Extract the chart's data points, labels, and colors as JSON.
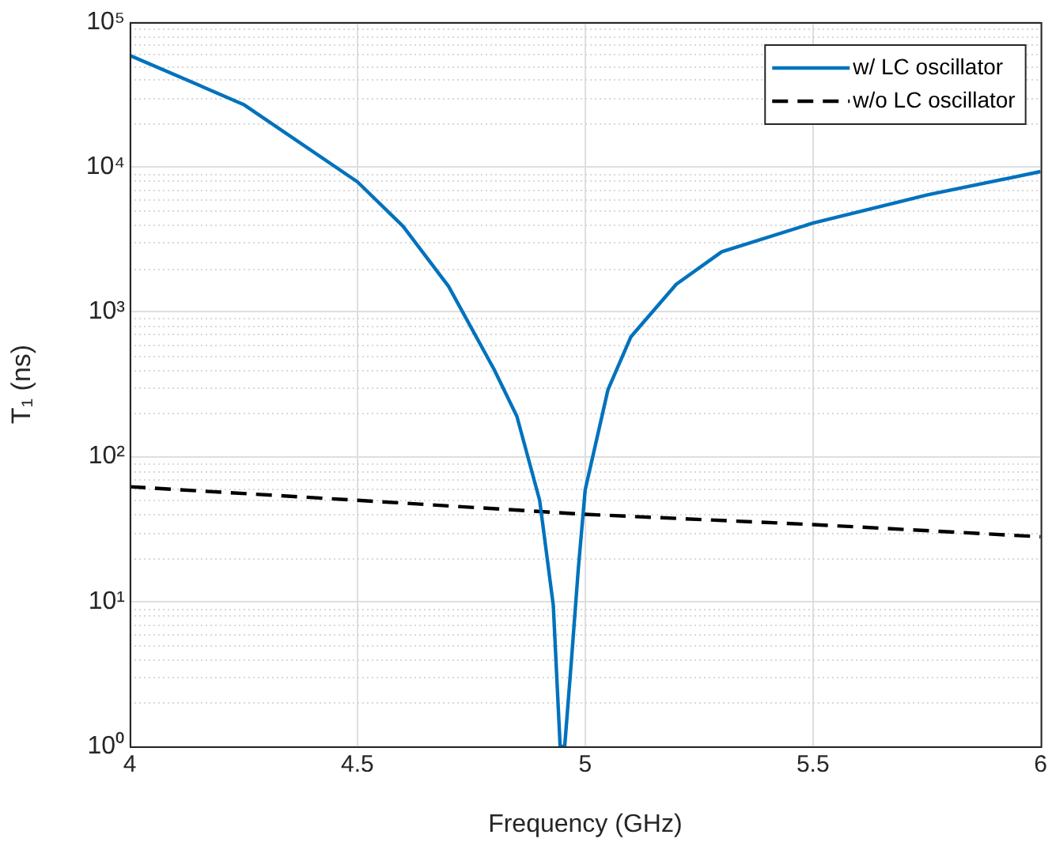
{
  "chart_data": {
    "type": "line",
    "xlabel": "Frequency (GHz)",
    "ylabel": "T₁ (ns)",
    "log": "y",
    "grid": true,
    "legend": "top right",
    "marker": "none",
    "xlim": [
      4,
      6
    ],
    "xticks": [
      4,
      4.5,
      5,
      5.5,
      6
    ],
    "ylim": [
      1,
      100000
    ],
    "yticks": [
      {
        "value": 1,
        "label": "10⁰"
      },
      {
        "value": 10,
        "label": "10¹"
      },
      {
        "value": 100,
        "label": "10²"
      },
      {
        "value": 1000,
        "label": "10³"
      },
      {
        "value": 10000,
        "label": "10⁴"
      },
      {
        "value": 100000,
        "label": "10⁵"
      }
    ],
    "series": [
      {
        "name": "w/ LC oscillator",
        "color": "#0072bd",
        "line_style": "solid",
        "x": [
          4,
          4.25,
          4.5,
          4.6,
          4.7,
          4.8,
          4.85,
          4.9,
          4.93,
          4.945,
          4.955,
          4.97,
          4.985,
          5,
          5.05,
          5.1,
          5.2,
          5.3,
          5.5,
          5.75,
          6
        ],
        "values": [
          59000,
          27000,
          7900,
          3900,
          1500,
          400,
          190,
          50,
          9.4,
          1,
          1,
          4,
          17,
          59,
          290,
          670,
          1550,
          2600,
          4100,
          6400,
          9300
        ]
      },
      {
        "name": "w/o LC oscillator",
        "color": "#000000",
        "line_style": "dashed",
        "x": [
          4,
          4.5,
          5,
          5.5,
          6
        ],
        "values": [
          62,
          50,
          40,
          34,
          28
        ]
      }
    ]
  }
}
